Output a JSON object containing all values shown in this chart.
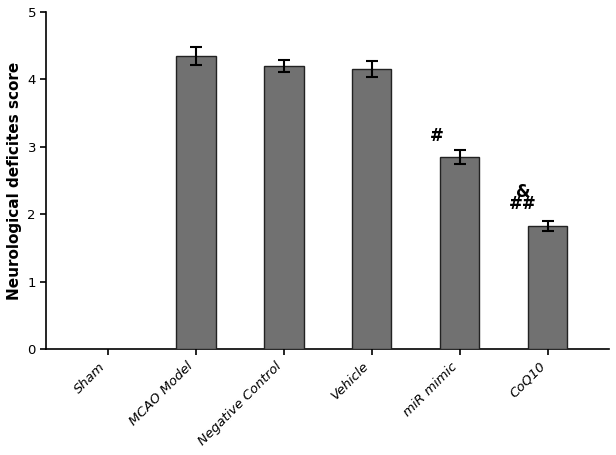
{
  "categories": [
    "Sham",
    "MCAO Model",
    "Negative Control",
    "Vehicle",
    "miR mimic",
    "CoQ10"
  ],
  "values": [
    0,
    4.35,
    4.2,
    4.15,
    2.85,
    1.83
  ],
  "errors": [
    0,
    0.13,
    0.09,
    0.12,
    0.1,
    0.07
  ],
  "bar_color": "#717171",
  "bar_edgecolor": "#222222",
  "ylabel": "Neurological deficites score",
  "ylim": [
    0,
    5
  ],
  "yticks": [
    0,
    1,
    2,
    3,
    4,
    5
  ],
  "annotation_fontsize": 12,
  "tick_fontsize": 9.5,
  "ylabel_fontsize": 11,
  "bar_width": 0.45,
  "figsize": [
    6.16,
    4.55
  ],
  "dpi": 100
}
